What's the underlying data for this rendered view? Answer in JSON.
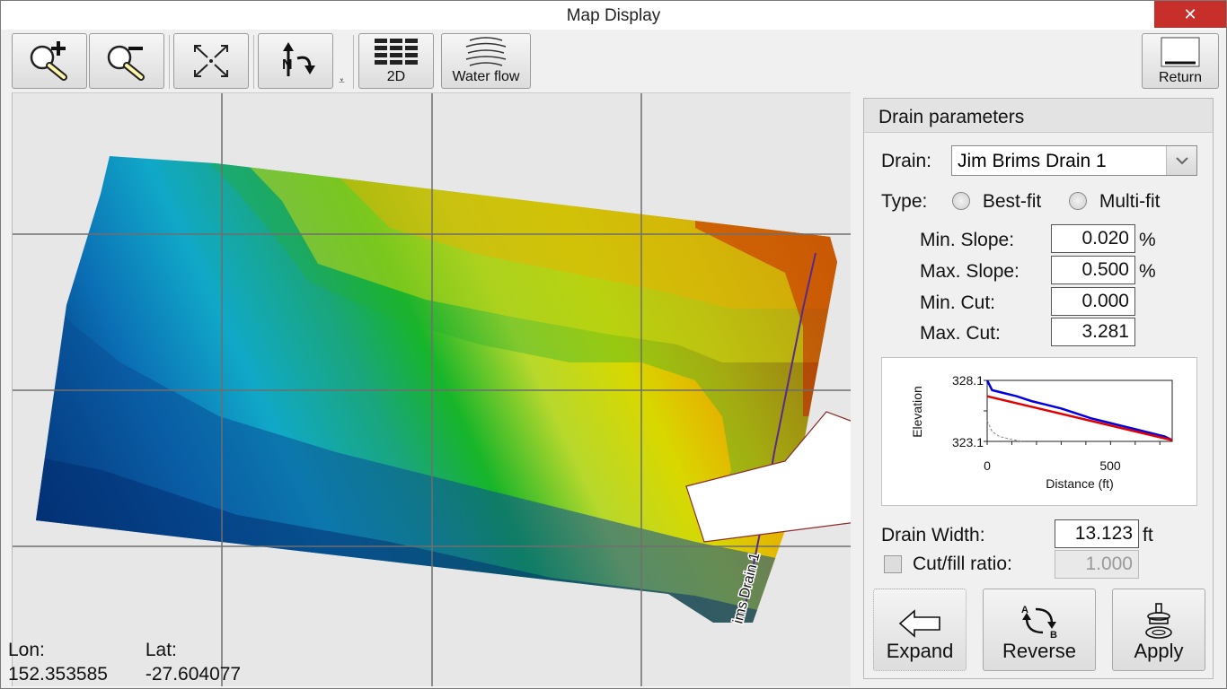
{
  "window": {
    "title": "Map Display",
    "close_glyph": "✕"
  },
  "toolbar": {
    "buttons": [
      {
        "name": "zoom-in",
        "icon": "zoom-in-icon",
        "label": ""
      },
      {
        "name": "zoom-out",
        "icon": "zoom-out-icon",
        "label": ""
      },
      {
        "name": "zoom-extents",
        "icon": "zoom-extents-icon",
        "label": ""
      },
      {
        "name": "rotate",
        "icon": "north-rotate-icon",
        "label": ""
      },
      {
        "name": "2d",
        "icon": "grid-2d-icon",
        "label": "2D"
      },
      {
        "name": "water-flow",
        "icon": "water-flow-icon",
        "label": "Water flow"
      },
      {
        "name": "return",
        "icon": "return-icon",
        "label": "Return"
      }
    ],
    "overflow_glyph": "⩡"
  },
  "map": {
    "drain_label": "Jim Brims Drain 1",
    "drain_label_visible": "ims Drain 1",
    "lon_label": "Lon:",
    "lat_label": "Lat:",
    "lon_value": "152.353585",
    "lat_value": "-27.604077",
    "colors": {
      "high": "#b00000",
      "mid": "#c8d800",
      "low": "#001a5a",
      "background": "#e7e7e7"
    }
  },
  "panel": {
    "title": "Drain parameters",
    "drain_label": "Drain:",
    "drain_value": "Jim Brims Drain 1",
    "type_label": "Type:",
    "type_options": [
      "Best-fit",
      "Multi-fit"
    ],
    "min_slope_label": "Min. Slope:",
    "min_slope_value": "0.020",
    "max_slope_label": "Max. Slope:",
    "max_slope_value": "0.500",
    "percent": "%",
    "min_cut_label": "Min. Cut:",
    "min_cut_value": "0.000",
    "max_cut_label": "Max. Cut:",
    "max_cut_value": "3.281",
    "width_label": "Drain Width:",
    "width_value": "13.123",
    "width_unit": "ft",
    "cutfill_label": "Cut/fill ratio:",
    "cutfill_value": "1.000",
    "buttons": {
      "expand": "Expand",
      "reverse": "Reverse",
      "apply": "Apply"
    }
  },
  "chart_data": {
    "type": "line",
    "xlabel": "Distance (ft)",
    "ylabel": "Elevation",
    "xlim": [
      0,
      750
    ],
    "ylim": [
      323.1,
      328.1
    ],
    "xticks": [
      "0",
      "500"
    ],
    "yticks": [
      "323.1",
      "328.1"
    ],
    "series": [
      {
        "color": "#0000e0",
        "x": [
          0,
          20,
          60,
          120,
          180,
          240,
          300,
          360,
          420,
          480,
          540,
          600,
          660,
          720,
          750
        ],
        "y": [
          328.1,
          327.3,
          327.1,
          326.8,
          326.4,
          326.1,
          325.8,
          325.4,
          325.0,
          324.7,
          324.4,
          324.1,
          323.8,
          323.5,
          323.2
        ]
      },
      {
        "color": "#e00000",
        "x": [
          0,
          750
        ],
        "y": [
          326.8,
          323.2
        ]
      },
      {
        "color": "#888888",
        "x": [
          0,
          20,
          50,
          90,
          140
        ],
        "y": [
          324.8,
          323.9,
          323.5,
          323.3,
          323.1
        ]
      }
    ]
  }
}
